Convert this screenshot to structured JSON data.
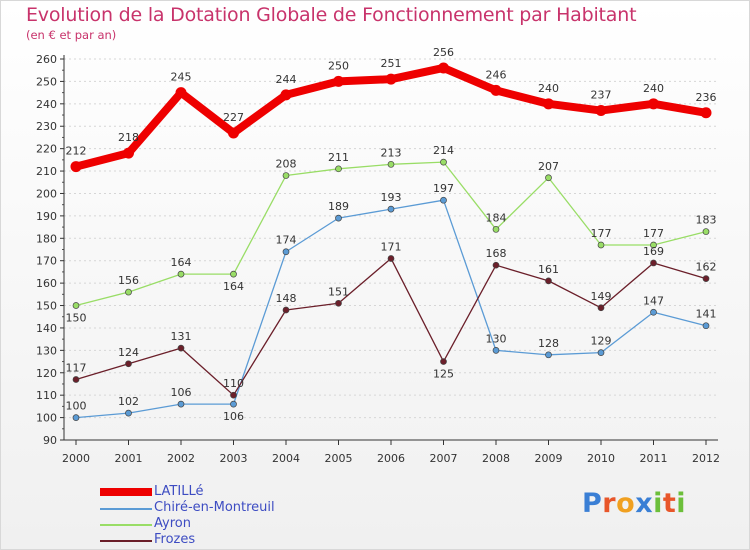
{
  "header": {
    "title": "Evolution de la Dotation Globale de Fonctionnement par Habitant",
    "subtitle": "(en € et par an)"
  },
  "chart_data": {
    "type": "line",
    "title": "Evolution de la Dotation Globale de Fonctionnement par Habitant",
    "subtitle": "(en € et par an)",
    "xlabel": "",
    "ylabel": "",
    "x": [
      "2000",
      "2001",
      "2002",
      "2003",
      "2004",
      "2005",
      "2006",
      "2007",
      "2008",
      "2009",
      "2010",
      "2011",
      "2012"
    ],
    "ylim": [
      90,
      260
    ],
    "yticks": [
      90,
      100,
      110,
      120,
      130,
      140,
      150,
      160,
      170,
      180,
      190,
      200,
      210,
      220,
      230,
      240,
      250,
      260
    ],
    "grid": "horizontal dashed",
    "legend": "bottom-left",
    "series": [
      {
        "name": "LATILLé",
        "color": "#ee0000",
        "values": [
          212,
          218,
          245,
          227,
          244,
          250,
          251,
          256,
          246,
          240,
          237,
          240,
          236
        ]
      },
      {
        "name": "Chiré-en-Montreuil",
        "color": "#5b9bd5",
        "values": [
          100,
          102,
          106,
          106,
          174,
          189,
          193,
          197,
          130,
          128,
          129,
          147,
          141
        ]
      },
      {
        "name": "Ayron",
        "color": "#99dd66",
        "values": [
          150,
          156,
          164,
          164,
          208,
          211,
          213,
          214,
          184,
          207,
          177,
          177,
          183
        ]
      },
      {
        "name": "Frozes",
        "color": "#6b1f2a",
        "values": [
          117,
          124,
          131,
          110,
          148,
          151,
          171,
          125,
          168,
          161,
          149,
          169,
          162
        ]
      }
    ]
  },
  "legend": {
    "items": [
      "LATILLé",
      "Chiré-en-Montreuil",
      "Ayron",
      "Frozes"
    ]
  },
  "logo": {
    "text": "Proxiti",
    "letters": [
      "P",
      "r",
      "o",
      "x",
      "i",
      "t",
      "i"
    ],
    "colors": [
      "#3a7fd5",
      "#e8562a",
      "#f0a020",
      "#3a7fd5",
      "#6cbf3a",
      "#e8562a",
      "#6cbf3a"
    ]
  }
}
